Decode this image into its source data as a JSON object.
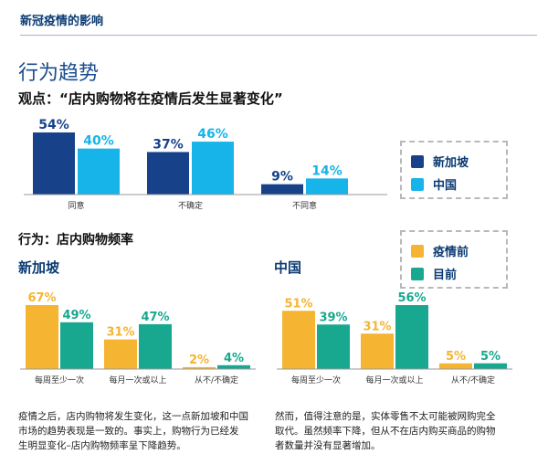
{
  "header": {
    "title": "新冠疫情的影响"
  },
  "section_title": "行为趋势",
  "colors": {
    "singapore": "#17428a",
    "china": "#16b4e8",
    "before": "#f5b432",
    "now": "#18a890"
  },
  "legend1": {
    "items": [
      "新加坡",
      "中国"
    ]
  },
  "legend2": {
    "items": [
      "疫情前",
      "目前"
    ]
  },
  "chart_data": [
    {
      "type": "bar",
      "title": "观点：“店内购物将在疫情后发生显著变化”",
      "categories": [
        "同意",
        "不确定",
        "不同意"
      ],
      "series": [
        {
          "name": "新加坡",
          "values": [
            54,
            37,
            9
          ]
        },
        {
          "name": "中国",
          "values": [
            40,
            46,
            14
          ]
        }
      ],
      "value_labels": [
        [
          "54%",
          "37%",
          "9%"
        ],
        [
          "40%",
          "46%",
          "14%"
        ]
      ],
      "ylim": [
        0,
        54
      ]
    },
    {
      "type": "bar",
      "title": "行为：店内购物频率",
      "subtitle": "新加坡",
      "categories": [
        "每周至少一次",
        "每月一次或以上",
        "从不/不确定"
      ],
      "series": [
        {
          "name": "疫情前",
          "values": [
            67,
            31,
            2
          ]
        },
        {
          "name": "目前",
          "values": [
            49,
            47,
            4
          ]
        }
      ],
      "value_labels": [
        [
          "67%",
          "31%",
          "2%"
        ],
        [
          "49%",
          "47%",
          "4%"
        ]
      ],
      "ylim": [
        0,
        67
      ]
    },
    {
      "type": "bar",
      "title": "",
      "subtitle": "中国",
      "categories": [
        "每周至少一次",
        "每月一次或以上",
        "从不/不确定"
      ],
      "series": [
        {
          "name": "疫情前",
          "values": [
            51,
            31,
            5
          ]
        },
        {
          "name": "目前",
          "values": [
            39,
            56,
            5
          ]
        }
      ],
      "value_labels": [
        [
          "51%",
          "31%",
          "5%"
        ],
        [
          "39%",
          "56%",
          "5%"
        ]
      ],
      "ylim": [
        0,
        56
      ]
    }
  ],
  "notes": {
    "left": "疫情之后，店内购物将发生变化，这一点新加坡和中国\n市场的趋势表现是一致的。事实上，购物行为已经发\n生明显变化–店内购物频率呈下降趋势。",
    "right": "然而，值得注意的是，实体零售不太可能被网购完全\n取代。虽然频率下降，但从不在店内购买商品的购物\n者数量并没有显著增加。"
  }
}
